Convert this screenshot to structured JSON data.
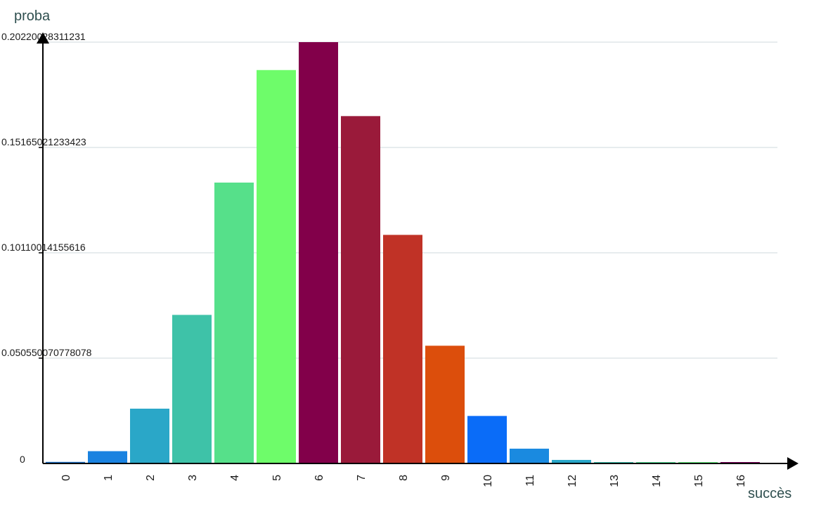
{
  "chart_data": {
    "type": "bar",
    "ylabel": "proba",
    "xlabel": "succès",
    "categories": [
      "0",
      "1",
      "2",
      "3",
      "4",
      "5",
      "6",
      "7",
      "8",
      "9",
      "10",
      "11",
      "12",
      "13",
      "14",
      "15",
      "16"
    ],
    "values": [
      0.00075,
      0.0059,
      0.0263,
      0.0713,
      0.1348,
      0.1888,
      0.2022,
      0.1667,
      0.1097,
      0.0565,
      0.0228,
      0.0071,
      0.0017,
      0.0003,
      4e-05,
      4e-06,
      0.0002
    ],
    "colors": [
      "#1a6fc7",
      "#1a82e0",
      "#2aa7c8",
      "#3ec2a8",
      "#56e08a",
      "#6efc6a",
      "#82004a",
      "#9a1a3a",
      "#c03226",
      "#dc4e0c",
      "#0a6cf8",
      "#1a8ae0",
      "#27a6c8",
      "#38bca8",
      "#4ed890",
      "#60e878",
      "#7a005a"
    ],
    "ylim": [
      0,
      0.20220028311231
    ],
    "yticks": [
      0,
      0.050550070778078,
      0.10110014155616,
      0.15165021233423,
      0.20220028311231
    ],
    "ytick_labels": [
      "0",
      "0.050550070778078",
      "0.10110014155616",
      "0.15165021233423",
      "0.20220028311231"
    ],
    "grid": true,
    "legend": "none"
  }
}
